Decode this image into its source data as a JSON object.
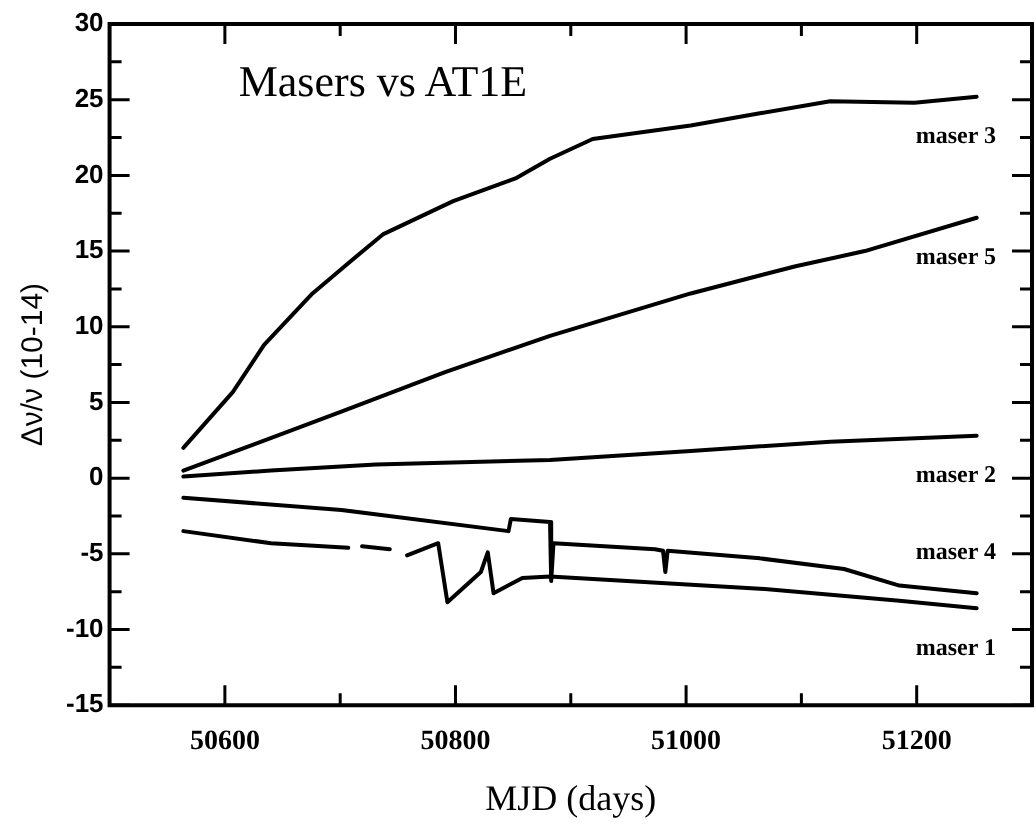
{
  "chart_data": {
    "type": "line",
    "title": "Masers vs AT1E",
    "xlabel": "MJD (days)",
    "ylabel": "Δν/ν (10-14)",
    "xlim": [
      50500,
      51300
    ],
    "xticks": [
      50600,
      {
        "value": 50700,
        "label": null
      },
      50800,
      {
        "value": 50900,
        "label": null
      },
      51000,
      {
        "value": 51100,
        "label": null
      },
      51200
    ],
    "ylim": [
      -15,
      30
    ],
    "yticks": [
      -15,
      {
        "value": -12.5,
        "label": null
      },
      -10,
      {
        "value": -7.5,
        "label": null
      },
      -5,
      {
        "value": -2.5,
        "label": null
      },
      0,
      {
        "value": 2.5,
        "label": null
      },
      5,
      {
        "value": 7.5,
        "label": null
      },
      10,
      {
        "value": 12.5,
        "label": null
      },
      15,
      {
        "value": 17.5,
        "label": null
      },
      20,
      {
        "value": 22.5,
        "label": null
      },
      25,
      {
        "value": 27.5,
        "label": null
      },
      30
    ],
    "grid": false,
    "legend": "right",
    "marker": "none",
    "line_style": "solid",
    "series": [
      {
        "name": "maser 3",
        "color": "#000000",
        "x": [
          50564,
          50607,
          50634,
          50676,
          50707,
          50737,
          50798,
          50852,
          50882,
          50919,
          51004,
          51064,
          51125,
          51198,
          51252
        ],
        "values": [
          2.0,
          5.7,
          8.8,
          12.2,
          14.2,
          16.1,
          18.3,
          19.8,
          21.1,
          22.4,
          23.3,
          24.1,
          24.9,
          24.8,
          25.2
        ]
      },
      {
        "name": "maser 5",
        "color": "#000000",
        "x": [
          50564,
          50610,
          50701,
          50791,
          50882,
          51004,
          51095,
          51155,
          51252
        ],
        "values": [
          0.5,
          1.8,
          4.4,
          7.0,
          9.4,
          12.2,
          14.0,
          15.0,
          17.2
        ]
      },
      {
        "name": "maser 2",
        "color": "#000000",
        "x": [
          50564,
          50640,
          50731,
          50882,
          51004,
          51125,
          51252
        ],
        "values": [
          0.1,
          0.5,
          0.9,
          1.2,
          1.8,
          2.4,
          2.8
        ]
      },
      {
        "name": "maser 4",
        "color": "#000000",
        "x": [
          50564,
          50701,
          50846,
          50848,
          50882,
          50883,
          50885,
          50973,
          50980,
          50982,
          50984,
          51064,
          51137,
          51185,
          51252
        ],
        "values": [
          -1.3,
          -2.1,
          -3.5,
          -2.7,
          -2.9,
          -6.8,
          -4.3,
          -4.7,
          -4.8,
          -6.2,
          -4.8,
          -5.3,
          -6.0,
          -7.1,
          -7.6
        ]
      },
      {
        "name": "maser 1",
        "color": "#000000",
        "x": [
          50564,
          50640,
          50707,
          50713,
          50719,
          50743,
          50750,
          50758,
          50785,
          50793,
          50822,
          50828,
          50833,
          50858,
          50882,
          51064,
          51185,
          51252
        ],
        "values": [
          -3.5,
          -4.3,
          -4.6,
          null,
          -4.5,
          -4.7,
          null,
          -5.1,
          -4.3,
          -8.2,
          -6.2,
          -4.9,
          -7.6,
          -6.6,
          -6.5,
          -7.3,
          -8.1,
          -8.6
        ]
      }
    ]
  }
}
